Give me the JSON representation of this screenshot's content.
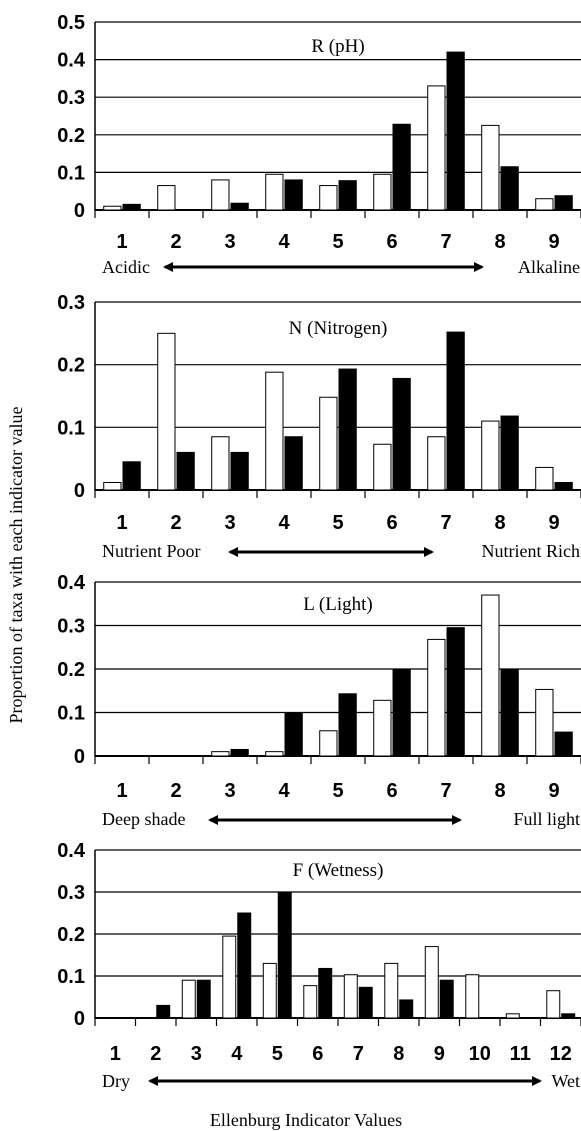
{
  "ylabel": "Proportion of taxa with each indicator value",
  "xlabel": "Ellenburg Indicator Values",
  "chart_data": [
    {
      "type": "bar",
      "title": "R (pH)",
      "categories": [
        "1",
        "2",
        "3",
        "4",
        "5",
        "6",
        "7",
        "8",
        "9"
      ],
      "ylim": [
        0,
        0.5
      ],
      "yticks": [
        "0",
        "0.1",
        "0.2",
        "0.3",
        "0.4",
        "0.5"
      ],
      "series": [
        {
          "values": [
            0.01,
            0.065,
            0.08,
            0.095,
            0.065,
            0.095,
            0.33,
            0.225,
            0.03
          ],
          "color": "#ffffff"
        },
        {
          "values": [
            0.015,
            0.0,
            0.018,
            0.08,
            0.078,
            0.228,
            0.42,
            0.115,
            0.038
          ],
          "color": "#000000"
        }
      ],
      "annotation_left": "Acidic",
      "annotation_right": "Alkaline"
    },
    {
      "type": "bar",
      "title": "N (Nitrogen)",
      "categories": [
        "1",
        "2",
        "3",
        "4",
        "5",
        "6",
        "7",
        "8",
        "9"
      ],
      "ylim": [
        0,
        0.3
      ],
      "yticks": [
        "0",
        "0.1",
        "0.2",
        "0.3"
      ],
      "series": [
        {
          "values": [
            0.012,
            0.25,
            0.085,
            0.188,
            0.148,
            0.073,
            0.085,
            0.11,
            0.036
          ],
          "color": "#ffffff"
        },
        {
          "values": [
            0.045,
            0.06,
            0.06,
            0.085,
            0.193,
            0.178,
            0.252,
            0.118,
            0.012
          ],
          "color": "#000000"
        }
      ],
      "annotation_left": "Nutrient Poor",
      "annotation_right": "Nutrient Rich"
    },
    {
      "type": "bar",
      "title": "L (Light)",
      "categories": [
        "1",
        "2",
        "3",
        "4",
        "5",
        "6",
        "7",
        "8",
        "9"
      ],
      "ylim": [
        0,
        0.4
      ],
      "yticks": [
        "0",
        "0.1",
        "0.2",
        "0.3",
        "0.4"
      ],
      "series": [
        {
          "values": [
            0,
            0,
            0.01,
            0.01,
            0.058,
            0.128,
            0.268,
            0.37,
            0.153
          ],
          "color": "#ffffff"
        },
        {
          "values": [
            0,
            0,
            0.015,
            0.098,
            0.143,
            0.2,
            0.295,
            0.2,
            0.055
          ],
          "color": "#000000"
        }
      ],
      "annotation_left": "Deep shade",
      "annotation_right": "Full light"
    },
    {
      "type": "bar",
      "title": "F (Wetness)",
      "categories": [
        "1",
        "2",
        "3",
        "4",
        "5",
        "6",
        "7",
        "8",
        "9",
        "10",
        "11",
        "12"
      ],
      "ylim": [
        0,
        0.4
      ],
      "yticks": [
        "0",
        "0.1",
        "0.2",
        "0.3",
        "0.4"
      ],
      "series": [
        {
          "values": [
            0,
            0,
            0.09,
            0.195,
            0.13,
            0.077,
            0.103,
            0.13,
            0.17,
            0.103,
            0.01,
            0.065
          ],
          "color": "#ffffff"
        },
        {
          "values": [
            0,
            0.03,
            0.09,
            0.25,
            0.298,
            0.118,
            0.073,
            0.043,
            0.09,
            0,
            0,
            0.01
          ],
          "color": "#000000"
        }
      ],
      "annotation_left": "Dry",
      "annotation_right": "Wet"
    }
  ]
}
